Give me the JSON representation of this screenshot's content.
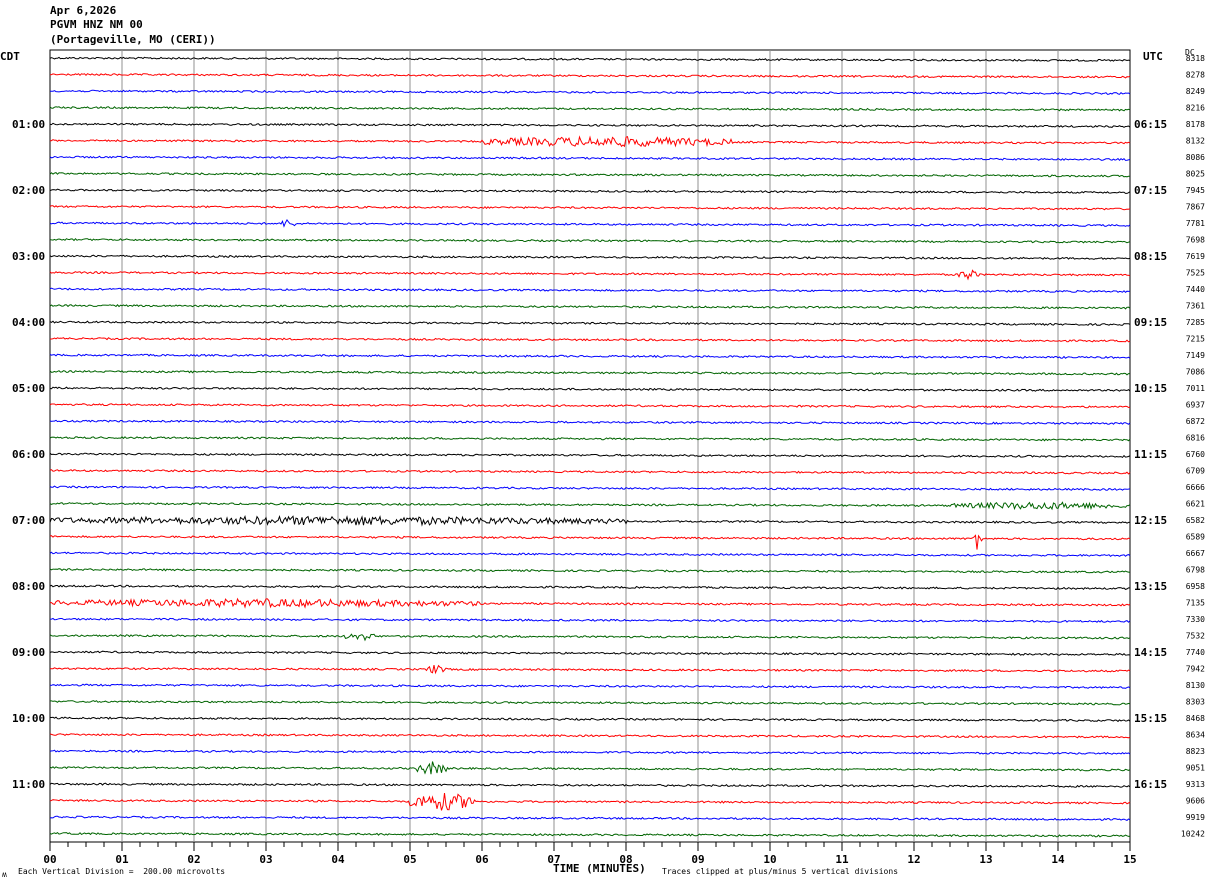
{
  "header": {
    "date": "Apr 6,2026",
    "station": "PGVM HNZ NM 00",
    "location": "(Portageville, MO (CERI))"
  },
  "labels": {
    "left_tz": "CDT",
    "right_tz": "UTC",
    "dc": "DC"
  },
  "footer": {
    "scale": "Each Vertical Division =  200.00 microvolts",
    "clip": "Traces clipped at plus/minus 5 vertical divisions",
    "corner_mark": "ʍ"
  },
  "chart_data": {
    "type": "line",
    "xlabel": "TIME (MINUTES)",
    "x_ticks": [
      "00",
      "01",
      "02",
      "03",
      "04",
      "05",
      "06",
      "07",
      "08",
      "09",
      "10",
      "11",
      "12",
      "13",
      "14",
      "15"
    ],
    "xlim": [
      0,
      15
    ],
    "minutes_per_trace": 15,
    "trace_colors": [
      "#000000",
      "#ff0000",
      "#0000ff",
      "#006400"
    ],
    "left_hour_labels": [
      "01:00",
      "02:00",
      "03:00",
      "04:00",
      "05:00",
      "06:00",
      "07:00",
      "08:00",
      "09:00",
      "10:00",
      "11:00"
    ],
    "right_hour_labels": [
      "06:15",
      "07:15",
      "08:15",
      "09:15",
      "10:15",
      "11:15",
      "12:15",
      "13:15",
      "14:15",
      "15:15",
      "16:15"
    ],
    "dc_offsets": [
      "8318",
      "8278",
      "8249",
      "8216",
      "8178",
      "8132",
      "8086",
      "8025",
      "7945",
      "7867",
      "7781",
      "7698",
      "7619",
      "7525",
      "7440",
      "7361",
      "7285",
      "7215",
      "7149",
      "7086",
      "7011",
      "6937",
      "6872",
      "6816",
      "6760",
      "6709",
      "6666",
      "6621",
      "6582",
      "6589",
      "6667",
      "6798",
      "6958",
      "7135",
      "7330",
      "7532",
      "7740",
      "7942",
      "8130",
      "8303",
      "8468",
      "8634",
      "8823",
      "9051",
      "9313",
      "9606",
      "9919",
      "10242"
    ],
    "activity": [
      {
        "trace": 5,
        "from_min": 6.0,
        "to_min": 9.5,
        "amplitude": 0.7
      },
      {
        "trace": 10,
        "from_min": 3.2,
        "to_min": 3.4,
        "amplitude": 0.6
      },
      {
        "trace": 13,
        "from_min": 12.6,
        "to_min": 12.9,
        "amplitude": 0.7
      },
      {
        "trace": 27,
        "from_min": 12.5,
        "to_min": 15.0,
        "amplitude": 0.5
      },
      {
        "trace": 28,
        "from_min": 0.0,
        "to_min": 8.0,
        "amplitude": 0.6
      },
      {
        "trace": 29,
        "from_min": 12.8,
        "to_min": 12.95,
        "amplitude": 1.4
      },
      {
        "trace": 33,
        "from_min": 0.0,
        "to_min": 6.0,
        "amplitude": 0.55
      },
      {
        "trace": 35,
        "from_min": 4.1,
        "to_min": 4.5,
        "amplitude": 0.6
      },
      {
        "trace": 37,
        "from_min": 5.2,
        "to_min": 5.5,
        "amplitude": 0.6
      },
      {
        "trace": 43,
        "from_min": 5.1,
        "to_min": 5.5,
        "amplitude": 0.9
      },
      {
        "trace": 45,
        "from_min": 5.0,
        "to_min": 5.9,
        "amplitude": 1.2
      }
    ]
  }
}
